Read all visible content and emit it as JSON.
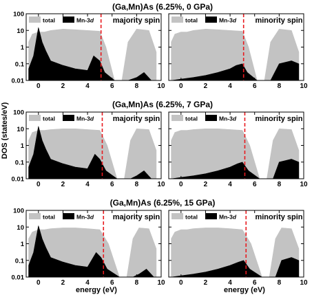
{
  "figure": {
    "ylabel": "DOS (states/eV)",
    "xlabel": "energy (eV)",
    "legend": {
      "total": "total",
      "mn": "Mn-3",
      "mn_sub": "d"
    },
    "x_ticks": [
      "0",
      "2",
      "4",
      "6",
      "8",
      "10"
    ],
    "y_ticks": [
      "0.01",
      "0.1",
      "1",
      "10",
      "100"
    ],
    "colors": {
      "total": "#c3c3c3",
      "mn": "#000000",
      "fermi": "#e8191e"
    }
  },
  "chart_data": [
    {
      "type": "area",
      "title": "(Ga,Mn)As (6.25%, 0 GPa)",
      "panels": [
        {
          "label": "majority spin",
          "xlim": [
            -1,
            10
          ],
          "ylim": [
            0.01,
            100
          ],
          "yscale": "log",
          "fermi_level": 5.1,
          "series": [
            {
              "name": "total",
              "x": [
                -0.8,
                -0.5,
                0,
                0.5,
                1,
                2,
                3,
                4,
                5,
                5.5,
                6.2,
                6.8,
                7.3,
                8,
                9,
                9.6
              ],
              "y": [
                2,
                6,
                8,
                8,
                10,
                12,
                11,
                10,
                9,
                1,
                0.01,
                0.01,
                2,
                12,
                10,
                0.5
              ]
            },
            {
              "name": "Mn-3d",
              "x": [
                -0.8,
                -0.4,
                0,
                0.3,
                0.6,
                1,
                2,
                3,
                4,
                4.5,
                5,
                5.4,
                6.2,
                7.3,
                8,
                8.6,
                9.2
              ],
              "y": [
                0.05,
                0.3,
                15,
                2,
                0.6,
                0.15,
                0.08,
                0.05,
                0.04,
                0.3,
                0.15,
                0.03,
                0.01,
                0.01,
                0.015,
                0.03,
                0.01
              ]
            }
          ]
        },
        {
          "label": "minority spin",
          "xlim": [
            -1,
            10
          ],
          "ylim": [
            0.01,
            100
          ],
          "yscale": "log",
          "fermi_level": 5.1,
          "series": [
            {
              "name": "total",
              "x": [
                -0.8,
                -0.5,
                0,
                0.5,
                1,
                2,
                3,
                4,
                5,
                5.5,
                6.2,
                6.8,
                7.3,
                8,
                9,
                9.6
              ],
              "y": [
                2,
                6,
                8,
                8,
                10,
                12,
                11,
                10,
                9,
                1,
                0.01,
                0.01,
                2,
                12,
                10,
                0.5
              ]
            },
            {
              "name": "Mn-3d",
              "x": [
                -0.8,
                0,
                1,
                2,
                3,
                4,
                4.5,
                5,
                5.4,
                6.2,
                7.3,
                8,
                9,
                9.6
              ],
              "y": [
                0.01,
                0.012,
                0.015,
                0.02,
                0.03,
                0.05,
                0.08,
                0.1,
                0.03,
                0.01,
                0.01,
                0.1,
                0.15,
                0.1
              ]
            }
          ]
        }
      ]
    },
    {
      "type": "area",
      "title": "(Ga,Mn)As (6.25%, 7 GPa)",
      "panels": [
        {
          "label": "majority spin",
          "xlim": [
            -1,
            10
          ],
          "ylim": [
            0.01,
            100
          ],
          "yscale": "log",
          "fermi_level": 5.2,
          "series": [
            {
              "name": "total",
              "x": [
                -0.8,
                -0.5,
                0,
                0.5,
                1,
                2,
                3,
                4,
                5,
                5.6,
                6.4,
                7,
                7.5,
                8,
                9,
                9.6
              ],
              "y": [
                2,
                6,
                8,
                8,
                9,
                10,
                10,
                9,
                8,
                1,
                0.01,
                0.01,
                2,
                10,
                9,
                0.5
              ]
            },
            {
              "name": "Mn-3d",
              "x": [
                -0.8,
                -0.4,
                0,
                0.3,
                0.6,
                1,
                2,
                3,
                4,
                4.6,
                5,
                5.5,
                6.4,
                7.5,
                8,
                8.6,
                9.2
              ],
              "y": [
                0.05,
                0.3,
                14,
                2,
                0.6,
                0.15,
                0.08,
                0.05,
                0.04,
                0.3,
                0.15,
                0.03,
                0.01,
                0.01,
                0.015,
                0.03,
                0.01
              ]
            }
          ]
        },
        {
          "label": "minority spin",
          "xlim": [
            -1,
            10
          ],
          "ylim": [
            0.01,
            100
          ],
          "yscale": "log",
          "fermi_level": 5.2,
          "series": [
            {
              "name": "total",
              "x": [
                -0.8,
                -0.5,
                0,
                0.5,
                1,
                2,
                3,
                4,
                5,
                5.6,
                6.4,
                7,
                7.5,
                8,
                9,
                9.6
              ],
              "y": [
                2,
                6,
                8,
                8,
                9,
                10,
                10,
                9,
                8,
                1,
                0.01,
                0.01,
                2,
                10,
                9,
                0.5
              ]
            },
            {
              "name": "Mn-3d",
              "x": [
                -0.8,
                0,
                1,
                2,
                3,
                4,
                4.6,
                5,
                5.5,
                6.4,
                7.5,
                8,
                9,
                9.6
              ],
              "y": [
                0.01,
                0.012,
                0.015,
                0.02,
                0.03,
                0.05,
                0.08,
                0.1,
                0.03,
                0.01,
                0.01,
                0.1,
                0.15,
                0.1
              ]
            }
          ]
        }
      ]
    },
    {
      "type": "area",
      "title": "(Ga,Mn)As (6.25%, 15 GPa)",
      "panels": [
        {
          "label": "majority spin",
          "xlim": [
            -1,
            10
          ],
          "ylim": [
            0.01,
            100
          ],
          "yscale": "log",
          "fermi_level": 5.3,
          "series": [
            {
              "name": "total",
              "x": [
                -0.8,
                -0.5,
                0,
                0.5,
                1,
                2,
                3,
                4,
                5,
                5.7,
                6.6,
                7.2,
                7.7,
                8.2,
                9,
                9.6
              ],
              "y": [
                2,
                5,
                7,
                7,
                8,
                9,
                9,
                8,
                7,
                1,
                0.01,
                0.01,
                2,
                9,
                8,
                0.5
              ]
            },
            {
              "name": "Mn-3d",
              "x": [
                -0.8,
                -0.4,
                0,
                0.3,
                0.6,
                1,
                2,
                3,
                4,
                4.7,
                5.1,
                5.6,
                6.6,
                7.7,
                8.2,
                8.8,
                9.4
              ],
              "y": [
                0.05,
                0.3,
                12,
                2,
                0.6,
                0.15,
                0.08,
                0.05,
                0.04,
                0.3,
                0.15,
                0.03,
                0.01,
                0.01,
                0.015,
                0.03,
                0.01
              ]
            }
          ]
        },
        {
          "label": "minority spin",
          "xlim": [
            -1,
            10
          ],
          "ylim": [
            0.01,
            100
          ],
          "yscale": "log",
          "fermi_level": 5.3,
          "series": [
            {
              "name": "total",
              "x": [
                -0.8,
                -0.5,
                0,
                0.5,
                1,
                2,
                3,
                4,
                5,
                5.7,
                6.6,
                7.2,
                7.7,
                8.2,
                9,
                9.6
              ],
              "y": [
                2,
                5,
                7,
                7,
                8,
                9,
                9,
                8,
                7,
                1,
                0.01,
                0.01,
                2,
                9,
                8,
                0.5
              ]
            },
            {
              "name": "Mn-3d",
              "x": [
                -0.8,
                0,
                1,
                2,
                3,
                4,
                4.7,
                5.1,
                5.6,
                6.6,
                7.7,
                8.2,
                9,
                9.6
              ],
              "y": [
                0.01,
                0.012,
                0.015,
                0.02,
                0.03,
                0.05,
                0.08,
                0.1,
                0.03,
                0.01,
                0.01,
                0.1,
                0.15,
                0.1
              ]
            }
          ]
        }
      ]
    }
  ]
}
